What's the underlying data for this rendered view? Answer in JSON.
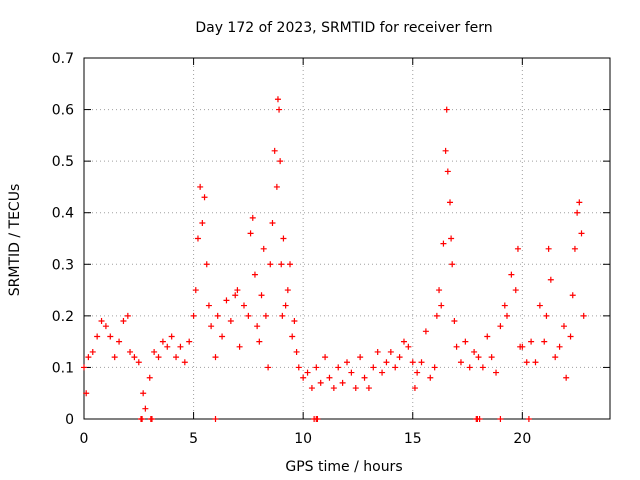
{
  "chart_data": {
    "type": "scatter",
    "title": "Day 172 of 2023, SRMTID for receiver fern",
    "xlabel": "GPS time / hours",
    "ylabel": "SRMTID / TECUs",
    "xlim": [
      0,
      24
    ],
    "ylim": [
      0,
      0.7
    ],
    "x_ticks": [
      0,
      5,
      10,
      15,
      20
    ],
    "x_tick_labels": [
      "0",
      "5",
      "10",
      "15",
      "20"
    ],
    "y_ticks": [
      0,
      0.1,
      0.2,
      0.3,
      0.4,
      0.5,
      0.6,
      0.7
    ],
    "y_tick_labels": [
      "0",
      "0.1",
      "0.2",
      "0.3",
      "0.4",
      "0.5",
      "0.6",
      "0.7"
    ],
    "grid": true,
    "marker": "plus",
    "color": "#ff0000",
    "series": [
      {
        "name": "SRMTID",
        "points": [
          [
            0.0,
            0.1
          ],
          [
            0.1,
            0.05
          ],
          [
            0.2,
            0.12
          ],
          [
            0.4,
            0.13
          ],
          [
            0.6,
            0.16
          ],
          [
            0.8,
            0.19
          ],
          [
            1.0,
            0.18
          ],
          [
            1.2,
            0.16
          ],
          [
            1.4,
            0.12
          ],
          [
            1.6,
            0.15
          ],
          [
            1.8,
            0.19
          ],
          [
            2.0,
            0.2
          ],
          [
            2.1,
            0.13
          ],
          [
            2.3,
            0.12
          ],
          [
            2.5,
            0.11
          ],
          [
            2.7,
            0.05
          ],
          [
            2.8,
            0.02
          ],
          [
            3.0,
            0.08
          ],
          [
            3.2,
            0.13
          ],
          [
            3.4,
            0.12
          ],
          [
            3.6,
            0.15
          ],
          [
            3.8,
            0.14
          ],
          [
            4.0,
            0.16
          ],
          [
            4.2,
            0.12
          ],
          [
            4.4,
            0.14
          ],
          [
            4.6,
            0.11
          ],
          [
            4.8,
            0.15
          ],
          [
            5.0,
            0.2
          ],
          [
            5.1,
            0.25
          ],
          [
            5.2,
            0.35
          ],
          [
            5.3,
            0.45
          ],
          [
            5.4,
            0.38
          ],
          [
            5.5,
            0.43
          ],
          [
            5.6,
            0.3
          ],
          [
            5.7,
            0.22
          ],
          [
            5.8,
            0.18
          ],
          [
            6.0,
            0.12
          ],
          [
            6.1,
            0.2
          ],
          [
            6.3,
            0.16
          ],
          [
            6.5,
            0.23
          ],
          [
            6.7,
            0.19
          ],
          [
            6.9,
            0.24
          ],
          [
            7.0,
            0.25
          ],
          [
            7.1,
            0.14
          ],
          [
            7.3,
            0.22
          ],
          [
            7.5,
            0.2
          ],
          [
            7.6,
            0.36
          ],
          [
            7.7,
            0.39
          ],
          [
            7.8,
            0.28
          ],
          [
            7.9,
            0.18
          ],
          [
            8.0,
            0.15
          ],
          [
            8.1,
            0.24
          ],
          [
            8.2,
            0.33
          ],
          [
            8.3,
            0.2
          ],
          [
            8.4,
            0.1
          ],
          [
            8.5,
            0.3
          ],
          [
            8.6,
            0.38
          ],
          [
            8.7,
            0.52
          ],
          [
            8.8,
            0.45
          ],
          [
            8.85,
            0.62
          ],
          [
            8.9,
            0.6
          ],
          [
            8.95,
            0.5
          ],
          [
            9.0,
            0.3
          ],
          [
            9.05,
            0.2
          ],
          [
            9.1,
            0.35
          ],
          [
            9.2,
            0.22
          ],
          [
            9.3,
            0.25
          ],
          [
            9.4,
            0.3
          ],
          [
            9.5,
            0.16
          ],
          [
            9.6,
            0.19
          ],
          [
            9.7,
            0.13
          ],
          [
            9.8,
            0.1
          ],
          [
            10.0,
            0.08
          ],
          [
            10.2,
            0.09
          ],
          [
            10.4,
            0.06
          ],
          [
            10.6,
            0.1
          ],
          [
            10.8,
            0.07
          ],
          [
            11.0,
            0.12
          ],
          [
            11.2,
            0.08
          ],
          [
            11.4,
            0.06
          ],
          [
            11.6,
            0.1
          ],
          [
            11.8,
            0.07
          ],
          [
            12.0,
            0.11
          ],
          [
            12.2,
            0.09
          ],
          [
            12.4,
            0.06
          ],
          [
            12.6,
            0.12
          ],
          [
            12.8,
            0.08
          ],
          [
            13.0,
            0.06
          ],
          [
            13.2,
            0.1
          ],
          [
            13.4,
            0.13
          ],
          [
            13.6,
            0.09
          ],
          [
            13.8,
            0.11
          ],
          [
            14.0,
            0.13
          ],
          [
            14.2,
            0.1
          ],
          [
            14.4,
            0.12
          ],
          [
            14.6,
            0.15
          ],
          [
            14.8,
            0.14
          ],
          [
            15.0,
            0.11
          ],
          [
            15.1,
            0.06
          ],
          [
            15.2,
            0.09
          ],
          [
            15.4,
            0.11
          ],
          [
            15.6,
            0.17
          ],
          [
            15.8,
            0.08
          ],
          [
            16.0,
            0.1
          ],
          [
            16.1,
            0.2
          ],
          [
            16.2,
            0.25
          ],
          [
            16.3,
            0.22
          ],
          [
            16.4,
            0.34
          ],
          [
            16.5,
            0.52
          ],
          [
            16.55,
            0.6
          ],
          [
            16.6,
            0.48
          ],
          [
            16.7,
            0.42
          ],
          [
            16.75,
            0.35
          ],
          [
            16.8,
            0.3
          ],
          [
            16.9,
            0.19
          ],
          [
            17.0,
            0.14
          ],
          [
            17.2,
            0.11
          ],
          [
            17.4,
            0.15
          ],
          [
            17.6,
            0.1
          ],
          [
            17.8,
            0.13
          ],
          [
            18.0,
            0.12
          ],
          [
            18.2,
            0.1
          ],
          [
            18.4,
            0.16
          ],
          [
            18.6,
            0.12
          ],
          [
            18.8,
            0.09
          ],
          [
            19.0,
            0.18
          ],
          [
            19.2,
            0.22
          ],
          [
            19.3,
            0.2
          ],
          [
            19.5,
            0.28
          ],
          [
            19.7,
            0.25
          ],
          [
            19.8,
            0.33
          ],
          [
            19.9,
            0.14
          ],
          [
            20.0,
            0.14
          ],
          [
            20.2,
            0.11
          ],
          [
            20.4,
            0.15
          ],
          [
            20.6,
            0.11
          ],
          [
            20.8,
            0.22
          ],
          [
            21.0,
            0.15
          ],
          [
            21.1,
            0.2
          ],
          [
            21.2,
            0.33
          ],
          [
            21.3,
            0.27
          ],
          [
            21.5,
            0.12
          ],
          [
            21.7,
            0.14
          ],
          [
            21.9,
            0.18
          ],
          [
            22.0,
            0.08
          ],
          [
            22.2,
            0.16
          ],
          [
            22.3,
            0.24
          ],
          [
            22.4,
            0.33
          ],
          [
            22.5,
            0.4
          ],
          [
            22.6,
            0.42
          ],
          [
            22.7,
            0.36
          ],
          [
            22.8,
            0.2
          ]
        ]
      }
    ],
    "zero_points_x": [
      2.6,
      2.65,
      3.05,
      3.1,
      6.0,
      10.5,
      10.6,
      10.65,
      17.9,
      17.95,
      18.05,
      19.0,
      20.3
    ]
  }
}
